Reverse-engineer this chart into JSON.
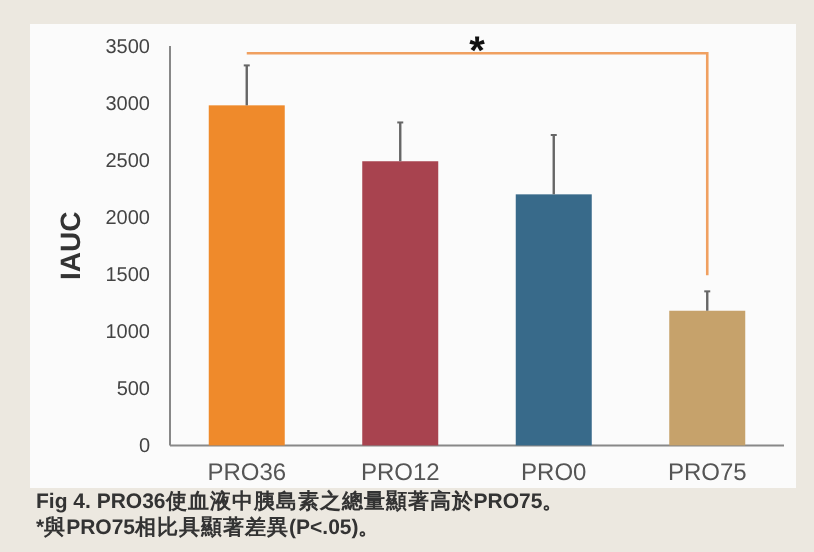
{
  "chart_data": {
    "type": "bar",
    "ylabel": "IAUC",
    "categories": [
      "PRO36",
      "PRO12",
      "PRO0",
      "PRO75"
    ],
    "values": [
      2980,
      2490,
      2200,
      1180
    ],
    "colors": [
      "#ef8a2b",
      "#a8434f",
      "#386a8a",
      "#c6a26b"
    ],
    "errors": [
      [
        2980,
        3330
      ],
      [
        2490,
        2830
      ],
      [
        2200,
        2720
      ],
      [
        1180,
        1350
      ]
    ],
    "ylim": [
      0,
      3500
    ],
    "yticks": [
      0,
      500,
      1000,
      1500,
      2000,
      2500,
      3000,
      3500
    ],
    "annotations": [
      "*",
      "Fig 4. PRO36使血液中胰島素之總量顯著高於PRO75。",
      "*與PRO75相比具顯著差異(P<.05)。"
    ]
  }
}
